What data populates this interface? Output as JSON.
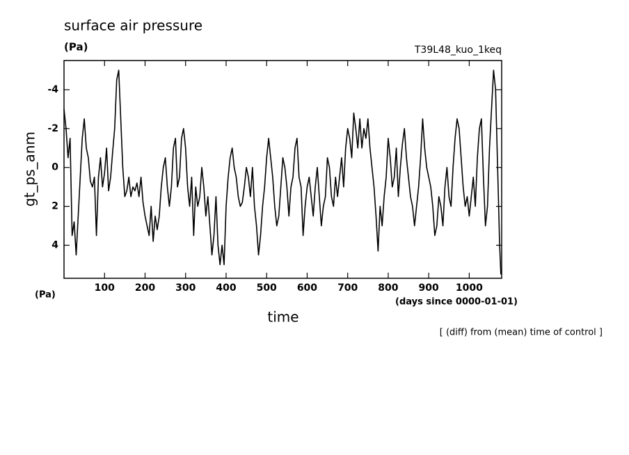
{
  "chart_data": {
    "type": "line",
    "title": "surface air pressure",
    "subtitle": "(Pa)",
    "run_label": "T39L48_kuo_1keq",
    "ylabel": "gt_ps_anm",
    "xlabel": "time",
    "yunit": "(Pa)",
    "xunit": "(days since 0000-01-01)",
    "annotation": "[ (diff) from (mean) time of control ]",
    "color": "#000000",
    "xlim": [
      0,
      1080
    ],
    "ylim": [
      5.7,
      -5.5
    ],
    "xticks": [
      100,
      200,
      300,
      400,
      500,
      600,
      700,
      800,
      900,
      1000
    ],
    "yticks": [
      -4,
      -2,
      0,
      2,
      4
    ],
    "x": [
      0,
      5,
      10,
      15,
      20,
      25,
      30,
      35,
      40,
      45,
      50,
      55,
      60,
      65,
      70,
      75,
      80,
      85,
      90,
      95,
      100,
      105,
      110,
      115,
      120,
      125,
      130,
      135,
      140,
      145,
      150,
      155,
      160,
      165,
      170,
      175,
      180,
      185,
      190,
      195,
      200,
      205,
      210,
      215,
      220,
      225,
      230,
      235,
      240,
      245,
      250,
      255,
      260,
      265,
      270,
      275,
      280,
      285,
      290,
      295,
      300,
      305,
      310,
      315,
      320,
      325,
      330,
      335,
      340,
      345,
      350,
      355,
      360,
      365,
      370,
      375,
      380,
      385,
      390,
      395,
      400,
      405,
      410,
      415,
      420,
      425,
      430,
      435,
      440,
      445,
      450,
      455,
      460,
      465,
      470,
      475,
      480,
      485,
      490,
      495,
      500,
      505,
      510,
      515,
      520,
      525,
      530,
      535,
      540,
      545,
      550,
      555,
      560,
      565,
      570,
      575,
      580,
      585,
      590,
      595,
      600,
      605,
      610,
      615,
      620,
      625,
      630,
      635,
      640,
      645,
      650,
      655,
      660,
      665,
      670,
      675,
      680,
      685,
      690,
      695,
      700,
      705,
      710,
      715,
      720,
      725,
      730,
      735,
      740,
      745,
      750,
      755,
      760,
      765,
      770,
      775,
      780,
      785,
      790,
      795,
      800,
      805,
      810,
      815,
      820,
      825,
      830,
      835,
      840,
      845,
      850,
      855,
      860,
      865,
      870,
      875,
      880,
      885,
      890,
      895,
      900,
      905,
      910,
      915,
      920,
      925,
      930,
      935,
      940,
      945,
      950,
      955,
      960,
      965,
      970,
      975,
      980,
      985,
      990,
      995,
      1000,
      1005,
      1010,
      1015,
      1020,
      1025,
      1030,
      1035,
      1040,
      1045,
      1050,
      1055,
      1060,
      1065,
      1070,
      1075,
      1078
    ],
    "values": [
      -3,
      -2,
      -0.5,
      -1.5,
      3.5,
      2.8,
      4.5,
      2.5,
      0.5,
      -1.5,
      -2.5,
      -1,
      -0.5,
      0.7,
      1,
      0.5,
      3.5,
      0.5,
      -0.5,
      1,
      0.3,
      -1,
      1.2,
      0.5,
      -0.8,
      -2,
      -4.5,
      -5,
      -2.5,
      0,
      1.5,
      1.2,
      0.5,
      1.5,
      1,
      1.2,
      0.8,
      1.5,
      0.5,
      1.8,
      2.5,
      3,
      3.5,
      2,
      3.8,
      2.5,
      3.2,
      2.5,
      1,
      0,
      -0.5,
      1,
      2,
      1,
      -1,
      -1.5,
      1,
      0.5,
      -1.5,
      -2,
      -1,
      1,
      2,
      0.5,
      3.5,
      1,
      2,
      1.5,
      0,
      1,
      2.5,
      1.5,
      3,
      4.5,
      3.5,
      1.5,
      4,
      5,
      4,
      5,
      2,
      0.5,
      -0.5,
      -1,
      0,
      0.5,
      1.5,
      2,
      1.8,
      1,
      0,
      0.5,
      1.5,
      0,
      2,
      3,
      4.5,
      3.5,
      2,
      1,
      -0.5,
      -1.5,
      -0.5,
      0.5,
      2,
      3,
      2.5,
      1,
      -0.5,
      0,
      1,
      2.5,
      1,
      0.5,
      -1,
      -1.5,
      0.5,
      1,
      3.5,
      2,
      1,
      0.5,
      1.5,
      2.5,
      1,
      0,
      1.5,
      3,
      2,
      1.5,
      -0.5,
      0,
      1.5,
      2,
      0.5,
      1.5,
      0.5,
      -0.5,
      1,
      -1,
      -2,
      -1.5,
      -0.5,
      -2.8,
      -2,
      -1,
      -2.5,
      -1,
      -2,
      -1.5,
      -2.5,
      -1,
      0,
      1,
      2.5,
      4.3,
      2,
      3,
      1.5,
      0.5,
      -1.5,
      -0.5,
      1,
      0.5,
      -1,
      1.5,
      0,
      -1.2,
      -2,
      -0.5,
      0.5,
      1.5,
      2,
      3,
      2,
      1,
      -0.5,
      -2.5,
      -1,
      0,
      0.5,
      1,
      2,
      3.5,
      3,
      1.5,
      2,
      3,
      1,
      0,
      1.5,
      2,
      0,
      -1.5,
      -2.5,
      -2,
      -0.5,
      1,
      2,
      1.5,
      2.5,
      1.5,
      0.5,
      2,
      -0.5,
      -2,
      -2.5,
      0.5,
      3,
      2,
      -1,
      -3,
      -5,
      -4,
      0,
      4,
      5.5
    ]
  }
}
